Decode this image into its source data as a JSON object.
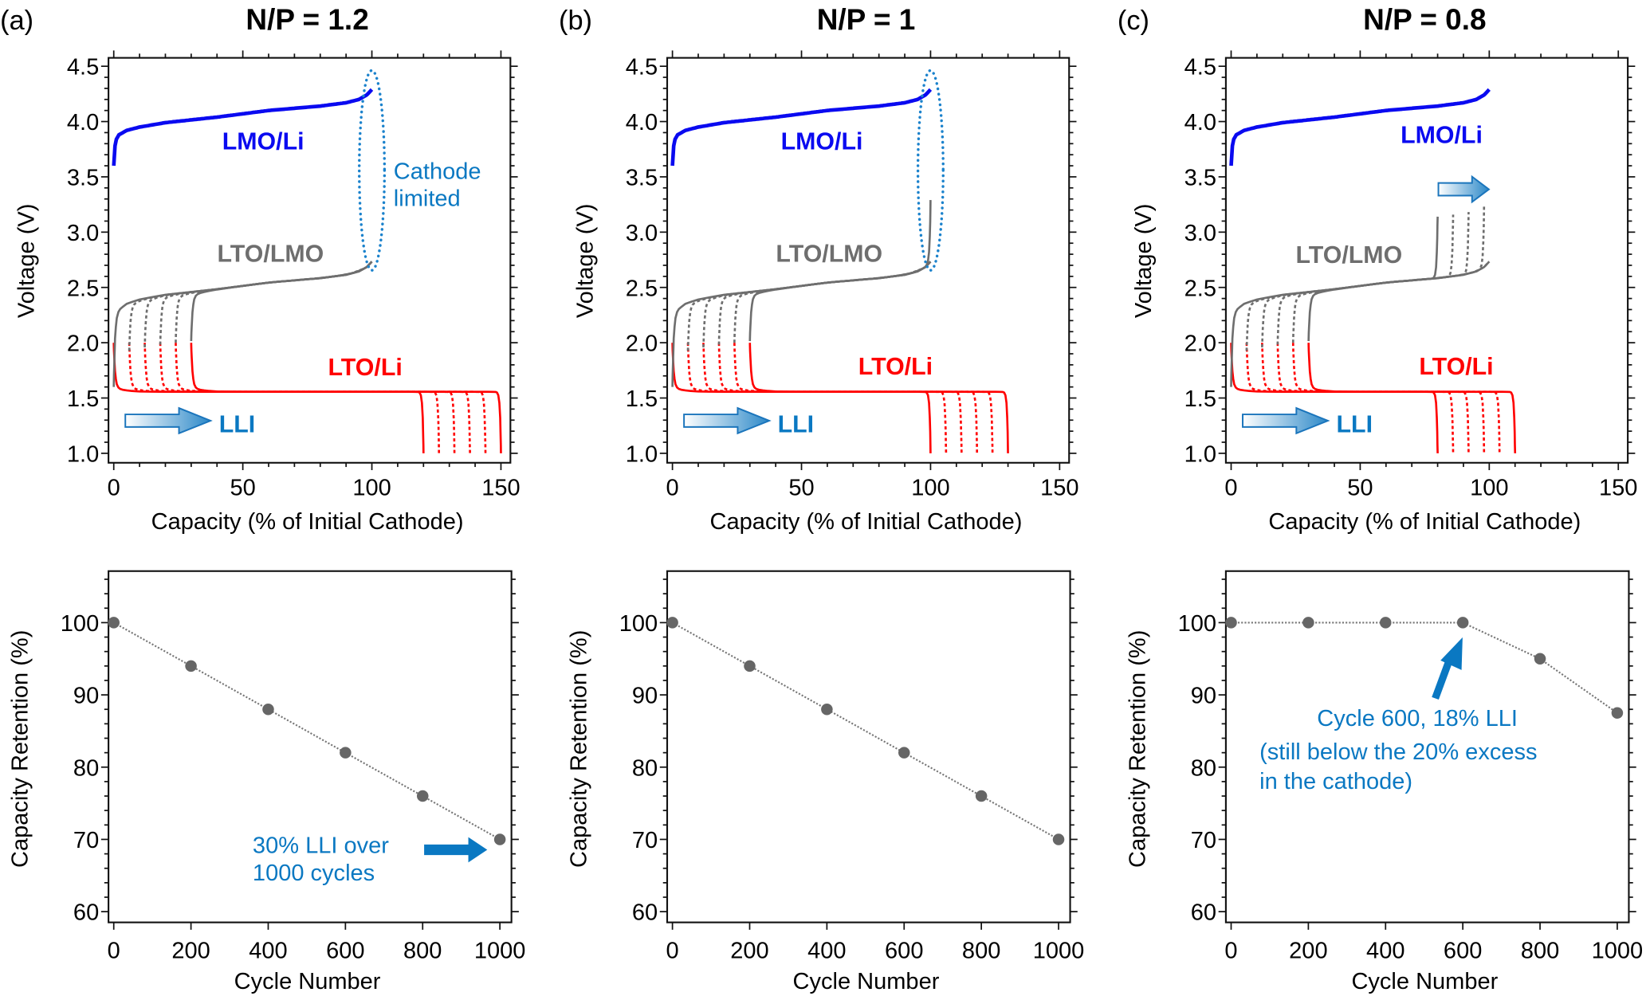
{
  "chart_data": [
    {
      "type": "line",
      "panel": "(a)",
      "title": "N/P = 1.2",
      "xlabel": "Capacity (% of Initial Cathode)",
      "ylabel": "Voltage (V)",
      "xlim": [
        0,
        150
      ],
      "ylim": [
        1.0,
        4.5
      ],
      "xticks": [
        "0",
        "50",
        "100",
        "150"
      ],
      "yticks": [
        "1.0",
        "1.5",
        "2.0",
        "2.5",
        "3.0",
        "3.5",
        "4.0",
        "4.5"
      ],
      "series": [
        {
          "name": "LMO/Li",
          "color": "#0A0AF0",
          "points": [
            [
              0,
              3.6
            ],
            [
              0.5,
              3.78
            ],
            [
              1,
              3.84
            ],
            [
              2,
              3.88
            ],
            [
              5,
              3.92
            ],
            [
              10,
              3.95
            ],
            [
              20,
              3.99
            ],
            [
              40,
              4.04
            ],
            [
              60,
              4.1
            ],
            [
              80,
              4.14
            ],
            [
              90,
              4.17
            ],
            [
              95,
              4.2
            ],
            [
              98,
              4.24
            ],
            [
              100,
              4.29
            ]
          ]
        },
        {
          "name": "LTO/LMO",
          "color": "#6E6E6E",
          "start_capacity": [
            0,
            6,
            12,
            18,
            24,
            30
          ],
          "end_capacity": [
            100,
            100,
            100,
            100,
            100,
            100
          ]
        },
        {
          "name": "LTO/Li",
          "color": "#FF0000",
          "start_capacity": [
            0,
            6,
            12,
            18,
            24,
            30
          ],
          "end_capacity": [
            120,
            126,
            132,
            138,
            144,
            150
          ]
        }
      ],
      "annotations": {
        "ellipse_text": [
          "Cathode",
          "limited"
        ],
        "arrow_text": "LLI"
      },
      "annotation_color": "#0A78C2"
    },
    {
      "type": "line",
      "panel": "(b)",
      "title": "N/P = 1",
      "xlabel": "Capacity (% of Initial Cathode)",
      "ylabel": "Voltage (V)",
      "xlim": [
        0,
        150
      ],
      "ylim": [
        1.0,
        4.5
      ],
      "xticks": [
        "0",
        "50",
        "100",
        "150"
      ],
      "yticks": [
        "1.0",
        "1.5",
        "2.0",
        "2.5",
        "3.0",
        "3.5",
        "4.0",
        "4.5"
      ],
      "series": [
        {
          "name": "LMO/Li",
          "color": "#0A0AF0",
          "points": [
            [
              0,
              3.6
            ],
            [
              0.5,
              3.78
            ],
            [
              1,
              3.84
            ],
            [
              2,
              3.88
            ],
            [
              5,
              3.92
            ],
            [
              10,
              3.95
            ],
            [
              20,
              3.99
            ],
            [
              40,
              4.04
            ],
            [
              60,
              4.1
            ],
            [
              80,
              4.14
            ],
            [
              90,
              4.17
            ],
            [
              95,
              4.2
            ],
            [
              98,
              4.24
            ],
            [
              100,
              4.29
            ]
          ]
        },
        {
          "name": "LTO/LMO",
          "color": "#6E6E6E",
          "start_capacity": [
            0,
            6,
            12,
            18,
            24,
            30
          ],
          "end_capacity": [
            100,
            100,
            100,
            100,
            100,
            100
          ]
        },
        {
          "name": "LTO/Li",
          "color": "#FF0000",
          "start_capacity": [
            0,
            6,
            12,
            18,
            24,
            30
          ],
          "end_capacity": [
            100,
            106,
            112,
            118,
            124,
            130
          ]
        }
      ],
      "annotations": {
        "arrow_text": "LLI"
      },
      "annotation_color": "#0A78C2"
    },
    {
      "type": "line",
      "panel": "(c)",
      "title": "N/P = 0.8",
      "xlabel": "Capacity (% of Initial Cathode)",
      "ylabel": "Voltage (V)",
      "xlim": [
        0,
        150
      ],
      "ylim": [
        1.0,
        4.5
      ],
      "xticks": [
        "0",
        "50",
        "100",
        "150"
      ],
      "yticks": [
        "1.0",
        "1.5",
        "2.0",
        "2.5",
        "3.0",
        "3.5",
        "4.0",
        "4.5"
      ],
      "series": [
        {
          "name": "LMO/Li",
          "color": "#0A0AF0",
          "points": [
            [
              0,
              3.6
            ],
            [
              0.5,
              3.78
            ],
            [
              1,
              3.84
            ],
            [
              2,
              3.88
            ],
            [
              5,
              3.92
            ],
            [
              10,
              3.95
            ],
            [
              20,
              3.99
            ],
            [
              40,
              4.04
            ],
            [
              60,
              4.1
            ],
            [
              80,
              4.14
            ],
            [
              90,
              4.17
            ],
            [
              95,
              4.2
            ],
            [
              98,
              4.24
            ],
            [
              100,
              4.29
            ]
          ]
        },
        {
          "name": "LTO/LMO",
          "color": "#6E6E6E",
          "start_capacity": [
            0,
            6,
            12,
            18,
            24,
            30
          ],
          "end_capacity": [
            80,
            86,
            92,
            98,
            100,
            100
          ]
        },
        {
          "name": "LTO/Li",
          "color": "#FF0000",
          "start_capacity": [
            0,
            6,
            12,
            18,
            24,
            30
          ],
          "end_capacity": [
            80,
            86,
            92,
            98,
            104,
            110
          ]
        }
      ],
      "annotations": {
        "arrow_text": "LLI"
      },
      "annotation_color": "#0A78C2"
    },
    {
      "type": "line",
      "xlabel": "Cycle Number",
      "ylabel": "Capacity Retention (%)",
      "xlim": [
        0,
        1000
      ],
      "ylim": [
        60,
        100
      ],
      "xticks": [
        "0",
        "200",
        "400",
        "600",
        "800",
        "1000"
      ],
      "yticks": [
        "60",
        "70",
        "80",
        "90",
        "100"
      ],
      "x": [
        0,
        200,
        400,
        600,
        800,
        1000
      ],
      "values": [
        100,
        94,
        88,
        82,
        76,
        70
      ],
      "color": "#666666",
      "annotations": [
        "30% LLI over",
        "1000 cycles"
      ],
      "annotation_color": "#0A78C2"
    },
    {
      "type": "line",
      "xlabel": "Cycle Number",
      "ylabel": "Capacity Retention (%)",
      "xlim": [
        0,
        1000
      ],
      "ylim": [
        60,
        100
      ],
      "xticks": [
        "0",
        "200",
        "400",
        "600",
        "800",
        "1000"
      ],
      "yticks": [
        "60",
        "70",
        "80",
        "90",
        "100"
      ],
      "x": [
        0,
        200,
        400,
        600,
        800,
        1000
      ],
      "values": [
        100,
        94,
        88,
        82,
        76,
        70
      ],
      "color": "#666666",
      "annotations": []
    },
    {
      "type": "line",
      "xlabel": "Cycle Number",
      "ylabel": "Capacity Retention (%)",
      "xlim": [
        0,
        1000
      ],
      "ylim": [
        60,
        100
      ],
      "xticks": [
        "0",
        "200",
        "400",
        "600",
        "800",
        "1000"
      ],
      "yticks": [
        "60",
        "70",
        "80",
        "90",
        "100"
      ],
      "x": [
        0,
        200,
        400,
        600,
        800,
        1000
      ],
      "values": [
        100,
        100,
        100,
        100,
        95,
        87.5
      ],
      "color": "#666666",
      "annotations": [
        "Cycle 600, 18% LLI",
        "(still below the 20% excess",
        "in the cathode)"
      ],
      "annotation_color": "#0A78C2"
    }
  ]
}
